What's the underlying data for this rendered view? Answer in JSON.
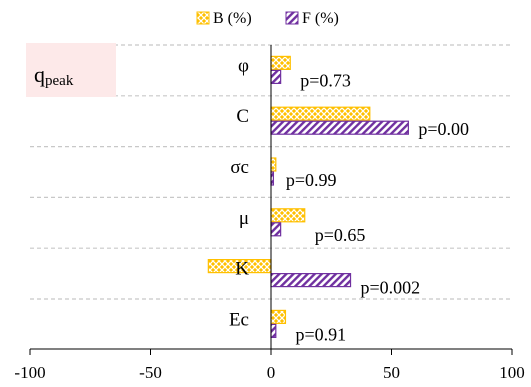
{
  "chart_data": {
    "type": "bar",
    "orientation": "horizontal",
    "panel_label": "q",
    "panel_label_subscript": "peak",
    "categories": [
      "φ",
      "C",
      "σc",
      "μ",
      "K",
      "Ec"
    ],
    "series": [
      {
        "name": "B (%)",
        "values": [
          8,
          41,
          2,
          14,
          -26,
          6
        ],
        "color": "#FFC000",
        "pattern": "cross-hatch"
      },
      {
        "name": "F (%)",
        "values": [
          4,
          57,
          1,
          4,
          33,
          2
        ],
        "color": "#7030A0",
        "pattern": "diagonal-hatch"
      }
    ],
    "p_labels": [
      "p=0.73",
      "p=0.00",
      "p=0.99",
      "p=0.65",
      "p=0.002",
      "p=0.91"
    ],
    "xlim": [
      -100,
      100
    ],
    "xticks": [
      -100,
      -50,
      0,
      50,
      100
    ],
    "xtick_labels": [
      "-100",
      "-50",
      "0",
      "50",
      "100"
    ],
    "grid": "horizontal dashed",
    "legend_position": "top"
  }
}
